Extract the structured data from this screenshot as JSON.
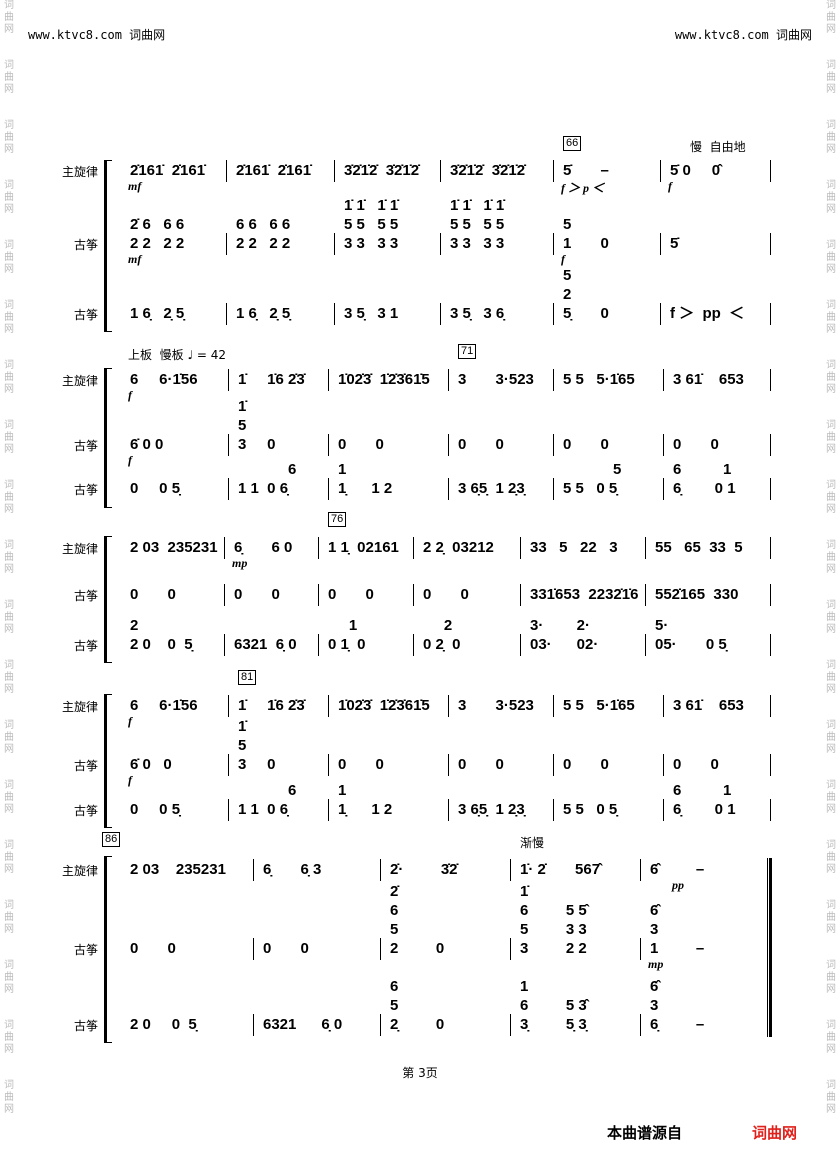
{
  "header": {
    "left": "www.ktvc8.com 词曲网",
    "right": "www.ktvc8.com 词曲网"
  },
  "watermark": "词\n曲\n网",
  "footer": {
    "page": "第 3页",
    "source_label": "本曲谱源自",
    "source_brand": "词曲网",
    "brand_color": "#e0201a"
  },
  "systems": [
    {
      "labels": [
        "主旋律",
        "古筝",
        "古筝"
      ],
      "rehearsal": [
        {
          "measure": 4,
          "text": "66"
        }
      ],
      "tempo": [
        {
          "measure": 5,
          "text": "慢  自由地"
        }
      ],
      "rows": [
        {
          "measures": [
            "2̇161̇  2̇161̇",
            "2̇161̇  2̇161̇",
            "3̇2̇1̇2̇  3̇2̇1̇2̇",
            "3̇2̇1̇2̇  3̇2̇1̇2̇",
            "5̇       –",
            "5̇ 0     0̂"
          ],
          "dyn": [
            "mf",
            "",
            "",
            "",
            "f ＞ p ＜",
            "f"
          ]
        },
        {
          "measures": [
            "2̇ 6   6 6\n2 2   2 2",
            "6 6   6 6\n2 2   2 2",
            "1̇ 1̇   1̇ 1̇\n5 5   5 5\n3 3   3 3",
            "1̇ 1̇   1̇ 1̇\n5 5   5 5\n3 3   3 3",
            "5\n1       0",
            "5̇"
          ],
          "dyn": [
            "mf",
            "",
            "",
            "",
            "f",
            ""
          ]
        },
        {
          "measures": [
            "1 6̣   2̣ 5̣",
            "1 6̣   2̣ 5̣",
            "3 5̣   3 1",
            "3 5̣   3 6̣",
            "5\n2\n5̣       0",
            "f ＞  pp  ＜"
          ],
          "dyn": [
            "",
            "",
            "",
            "",
            "",
            ""
          ]
        }
      ]
    },
    {
      "labels": [
        "主旋律",
        "古筝",
        "古筝"
      ],
      "rehearsal": [
        {
          "measure": 3,
          "text": "71"
        }
      ],
      "tempo": [
        {
          "measure": 0,
          "text": "上板  慢板 ♩ = 42"
        }
      ],
      "rows": [
        {
          "measures": [
            "6     6·1̇56",
            "1̇     1̇6 2̇3̇",
            "1̇02̇3̇  1̇2̇3̇61̇5",
            "3       3·523",
            "5 5   5·1̇65",
            "3 61̇    653"
          ],
          "dyn": [
            "f",
            "",
            "",
            "",
            "",
            ""
          ]
        },
        {
          "measures": [
            "6̇ 0 0",
            "1̇\n5\n3     0",
            "0       0",
            "0       0",
            "0       0",
            "0       0"
          ],
          "dyn": [
            "f",
            "",
            "",
            "",
            "",
            ""
          ]
        },
        {
          "measures": [
            "0     0 5̣",
            "            6\n1 1  0 6̣",
            "1\n1̣      1 2",
            "3 6̣5̣  1 2̣3̣",
            "            5\n5 5   0 5̣",
            "6          1\n6̣        0 1"
          ],
          "dyn": [
            "",
            "",
            "",
            "",
            "",
            ""
          ]
        }
      ]
    },
    {
      "labels": [
        "主旋律",
        "古筝",
        "古筝"
      ],
      "rehearsal": [
        {
          "measure": 2,
          "text": "76"
        }
      ],
      "tempo": [],
      "rows": [
        {
          "measures": [
            "2 03  235231",
            "6̣       6 0",
            "1 1̣  02161",
            "2 2̣  03212",
            "33   5   22   3",
            "55   65  33  5"
          ],
          "dyn": [
            "",
            "mp",
            "",
            "",
            "",
            ""
          ]
        },
        {
          "measures": [
            "0       0",
            "0       0",
            "0       0",
            "0       0",
            "331̇653  2232̇1̇6",
            "552̇165  330"
          ],
          "dyn": [
            "",
            "",
            "",
            "",
            "",
            ""
          ]
        },
        {
          "measures": [
            "2\n2 0    0  5̣",
            "6321  6̣ 0",
            "     1\n0 1̣  0",
            "     2\n0 2̣  0",
            "3·        2·\n03·      02·",
            "5·\n05·       0 5̣"
          ],
          "dyn": [
            "",
            "",
            "",
            "",
            "",
            ""
          ]
        }
      ]
    },
    {
      "labels": [
        "主旋律",
        "古筝",
        "古筝"
      ],
      "rehearsal": [
        {
          "measure": 1,
          "text": "81"
        }
      ],
      "tempo": [],
      "rows": [
        {
          "measures": [
            "6     6·1̇56",
            "1̇     1̇6 2̇3̇",
            "1̇02̇3̇  1̇2̇3̇61̇5",
            "3       3·523",
            "5 5   5·1̇65",
            "3 61̇    653"
          ],
          "dyn": [
            "f",
            "",
            "",
            "",
            "",
            ""
          ]
        },
        {
          "measures": [
            "6̇ 0   0",
            "1̇\n5\n3     0",
            "0       0",
            "0       0",
            "0       0",
            "0       0"
          ],
          "dyn": [
            "f",
            "",
            "",
            "",
            "",
            ""
          ]
        },
        {
          "measures": [
            "0     0 5̣",
            "            6\n1 1  0 6̣",
            "1\n1̣      1 2",
            "3 6̣5̣  1 2̣3̣",
            "5 5   0 5̣",
            "6          1\n6̣        0 1"
          ],
          "dyn": [
            "",
            "",
            "",
            "",
            "",
            ""
          ]
        }
      ]
    },
    {
      "labels": [
        "主旋律",
        "古筝",
        "古筝"
      ],
      "rehearsal": [
        {
          "measure": 0,
          "text": "86"
        }
      ],
      "tempo": [
        {
          "measure": 3,
          "text": "渐慢"
        }
      ],
      "rows": [
        {
          "measures": [
            "2 03    235231",
            "6̣       6̣ 3",
            "2̇·         3̇2̇",
            "1̇· 2̇       567̂",
            "6̂         –"
          ],
          "dyn": [
            "",
            "",
            "",
            "",
            "        pp"
          ]
        },
        {
          "measures": [
            "0       0",
            "0       0",
            "2̇\n6\n5\n2         0",
            "1̇\n6         5 5̂\n5         3 3\n3         2 2",
            "6̂\n3\n1         –"
          ],
          "dyn": [
            "",
            "",
            "",
            "",
            "mp"
          ]
        },
        {
          "measures": [
            "2 0     0  5̣",
            "6321      6̣ 0",
            "6\n5\n2̣         0",
            "1\n6         5 3̂\n3̣         5̣ 3̣",
            "6̂\n3\n6̣         –"
          ],
          "dyn": [
            "",
            "",
            "",
            "",
            ""
          ]
        }
      ]
    }
  ]
}
